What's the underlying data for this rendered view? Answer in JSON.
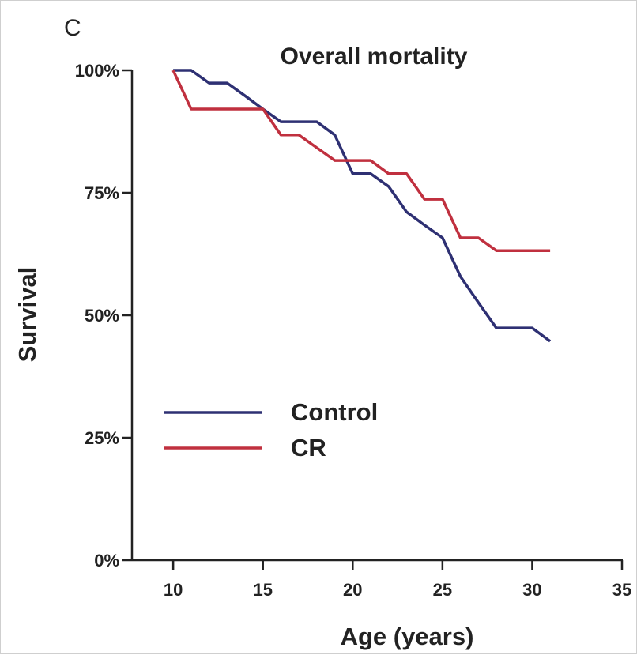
{
  "panel_label": "C",
  "chart_data": {
    "type": "line",
    "title": "Overall mortality",
    "xlabel": "Age (years)",
    "ylabel": "Survival",
    "xlim": [
      7,
      35
    ],
    "ylim": [
      0,
      100
    ],
    "x_ticks": [
      10,
      15,
      20,
      25,
      30,
      35
    ],
    "y_ticks": [
      0,
      25,
      50,
      75,
      100
    ],
    "y_tick_labels": [
      "0%",
      "25%",
      "50%",
      "75%",
      "100%"
    ],
    "grid": false,
    "legend_position": "center-left",
    "series": [
      {
        "name": "Control",
        "color": "#2e3073",
        "points": [
          [
            10,
            100
          ],
          [
            11,
            100
          ],
          [
            12,
            97.4
          ],
          [
            13,
            97.4
          ],
          [
            14,
            94.8
          ],
          [
            15,
            92.1
          ],
          [
            16,
            89.5
          ],
          [
            17,
            89.5
          ],
          [
            18,
            89.5
          ],
          [
            19,
            86.8
          ],
          [
            20,
            78.9
          ],
          [
            21,
            78.9
          ],
          [
            22,
            76.3
          ],
          [
            23,
            71.1
          ],
          [
            24,
            68.4
          ],
          [
            25,
            65.8
          ],
          [
            26,
            57.9
          ],
          [
            27,
            52.6
          ],
          [
            28,
            47.4
          ],
          [
            29,
            47.4
          ],
          [
            30,
            47.4
          ],
          [
            31,
            44.7
          ]
        ]
      },
      {
        "name": "CR",
        "color": "#c0303f",
        "points": [
          [
            10,
            100
          ],
          [
            11,
            92.1
          ],
          [
            12,
            92.1
          ],
          [
            13,
            92.1
          ],
          [
            14,
            92.1
          ],
          [
            15,
            92.1
          ],
          [
            16,
            86.8
          ],
          [
            17,
            86.8
          ],
          [
            18,
            84.2
          ],
          [
            19,
            81.6
          ],
          [
            20,
            81.6
          ],
          [
            21,
            81.6
          ],
          [
            22,
            78.9
          ],
          [
            23,
            78.9
          ],
          [
            24,
            73.7
          ],
          [
            25,
            73.7
          ],
          [
            26,
            65.8
          ],
          [
            27,
            65.8
          ],
          [
            28,
            63.2
          ],
          [
            29,
            63.2
          ],
          [
            30,
            63.2
          ],
          [
            31,
            63.2
          ]
        ]
      }
    ]
  }
}
